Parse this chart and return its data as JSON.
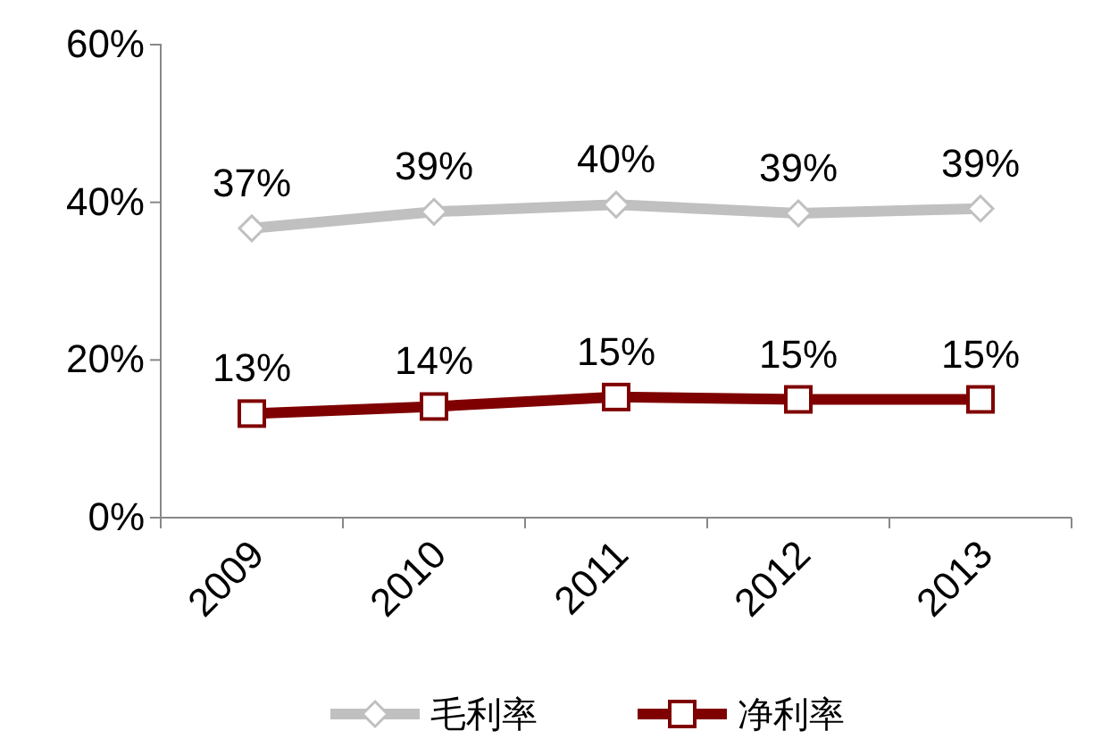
{
  "chart_data": {
    "type": "line",
    "categories": [
      "2009",
      "2010",
      "2011",
      "2012",
      "2013"
    ],
    "series": [
      {
        "name": "毛利率",
        "color": "#c0c0c0",
        "marker": "diamond",
        "values": [
          36.7,
          38.8,
          39.7,
          38.6,
          39.2
        ],
        "value_labels": [
          "37%",
          "39%",
          "40%",
          "39%",
          "39%"
        ]
      },
      {
        "name": "净利率",
        "color": "#7f0000",
        "marker": "square",
        "values": [
          13.2,
          14.1,
          15.3,
          15.0,
          15.0
        ],
        "value_labels": [
          "13%",
          "14%",
          "15%",
          "15%",
          "15%"
        ]
      }
    ],
    "ylim": [
      0,
      60
    ],
    "yticks": [
      {
        "value": 0,
        "label": "0%"
      },
      {
        "value": 20,
        "label": "20%"
      },
      {
        "value": 40,
        "label": "40%"
      },
      {
        "value": 60,
        "label": "60%"
      }
    ],
    "legend": "bottom",
    "grid": false
  }
}
